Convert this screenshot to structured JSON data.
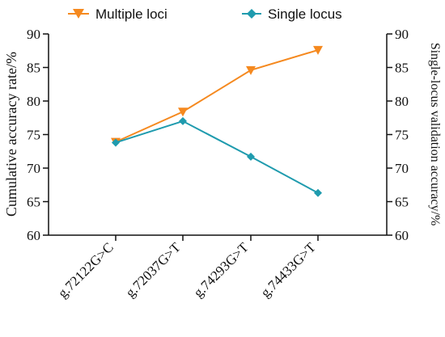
{
  "chart_data": {
    "type": "line",
    "categories": [
      "g.72122G>C",
      "g.72037G>T",
      "g.74293G>T",
      "g.74433G>T"
    ],
    "series": [
      {
        "name": "Multiple loci",
        "axis": "left",
        "marker": "triangle-down",
        "color": "#F5891F",
        "values": [
          73.9,
          78.4,
          84.6,
          87.6
        ]
      },
      {
        "name": "Single locus",
        "axis": "right",
        "marker": "diamond",
        "color": "#1F9BAE",
        "values": [
          73.8,
          77.0,
          71.7,
          66.3
        ]
      }
    ],
    "ylabel": "Cumulative  accuracy rate/%",
    "y2label": "Single-locus validation accuracy/%",
    "xlabel": "",
    "ylim": [
      60,
      90
    ],
    "y2lim": [
      60,
      90
    ],
    "yticks": [
      60,
      65,
      70,
      75,
      80,
      85,
      90
    ],
    "grid": false,
    "legend_placement": "top"
  }
}
